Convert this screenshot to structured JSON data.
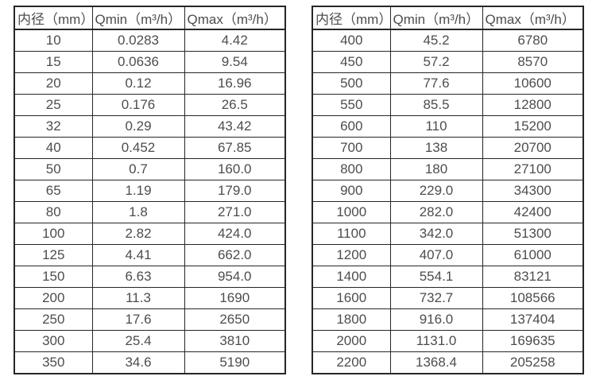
{
  "page": {
    "background": "#ffffff",
    "text_color": "#4d4d4d",
    "border_color": "#262626"
  },
  "tables": [
    {
      "name": "flow-table-small-diameters",
      "headers": [
        "内径（mm）",
        "Qmin（m³/h）",
        "Qmax（m³/h）"
      ],
      "rows": [
        [
          "10",
          "0.0283",
          "4.42"
        ],
        [
          "15",
          "0.0636",
          "9.54"
        ],
        [
          "20",
          "0.12",
          "16.96"
        ],
        [
          "25",
          "0.176",
          "26.5"
        ],
        [
          "32",
          "0.29",
          "43.42"
        ],
        [
          "40",
          "0.452",
          "67.85"
        ],
        [
          "50",
          "0.7",
          "160.0"
        ],
        [
          "65",
          "1.19",
          "179.0"
        ],
        [
          "80",
          "1.8",
          "271.0"
        ],
        [
          "100",
          "2.82",
          "424.0"
        ],
        [
          "125",
          "4.41",
          "662.0"
        ],
        [
          "150",
          "6.63",
          "954.0"
        ],
        [
          "200",
          "11.3",
          "1690"
        ],
        [
          "250",
          "17.6",
          "2650"
        ],
        [
          "300",
          "25.4",
          "3810"
        ],
        [
          "350",
          "34.6",
          "5190"
        ]
      ]
    },
    {
      "name": "flow-table-large-diameters",
      "headers": [
        "内径（mm）",
        "Qmin（m³/h）",
        "Qmax（m³/h）"
      ],
      "rows": [
        [
          "400",
          "45.2",
          "6780"
        ],
        [
          "450",
          "57.2",
          "8570"
        ],
        [
          "500",
          "77.6",
          "10600"
        ],
        [
          "550",
          "85.5",
          "12800"
        ],
        [
          "600",
          "110",
          "15200"
        ],
        [
          "700",
          "138",
          "20700"
        ],
        [
          "800",
          "180",
          "27100"
        ],
        [
          "900",
          "229.0",
          "34300"
        ],
        [
          "1000",
          "282.0",
          "42400"
        ],
        [
          "1100",
          "342.0",
          "51300"
        ],
        [
          "1200",
          "407.0",
          "61000"
        ],
        [
          "1400",
          "554.1",
          "83121"
        ],
        [
          "1600",
          "732.7",
          "108566"
        ],
        [
          "1800",
          "916.0",
          "137404"
        ],
        [
          "2000",
          "1131.0",
          "169635"
        ],
        [
          "2200",
          "1368.4",
          "205258"
        ]
      ]
    }
  ]
}
